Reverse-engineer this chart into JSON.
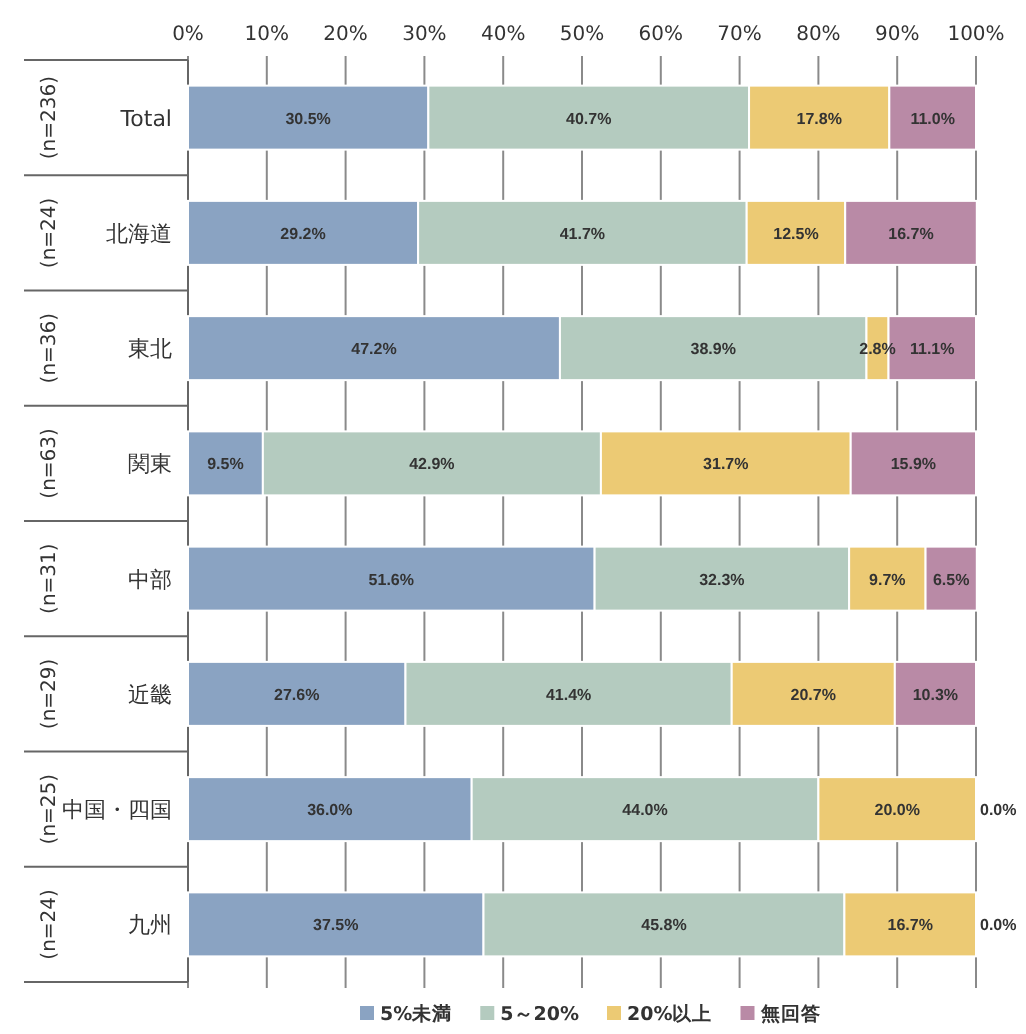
{
  "chart_data": {
    "type": "bar",
    "orientation": "horizontal",
    "stacked": true,
    "grid": "x",
    "legend": "bottom",
    "categories": [
      "Total",
      "北海道",
      "東北",
      "関東",
      "中部",
      "近畿",
      "中国・四国",
      "九州"
    ],
    "annotations": [
      "(n=236)",
      "(n=24)",
      "(n=36)",
      "(n=63)",
      "(n=31)",
      "(n=29)",
      "(n=25)",
      "(n=24)"
    ],
    "xlim": [
      0,
      100
    ],
    "xticks": [
      {
        "value": 0,
        "label": "0%"
      },
      {
        "value": 10,
        "label": "10%"
      },
      {
        "value": 20,
        "label": "20%"
      },
      {
        "value": 30,
        "label": "30%"
      },
      {
        "value": 40,
        "label": "40%"
      },
      {
        "value": 50,
        "label": "50%"
      },
      {
        "value": 60,
        "label": "60%"
      },
      {
        "value": 70,
        "label": "70%"
      },
      {
        "value": 80,
        "label": "80%"
      },
      {
        "value": 90,
        "label": "90%"
      },
      {
        "value": 100,
        "label": "100%"
      }
    ],
    "series": [
      {
        "name": "5%未満",
        "color": "#8aa3c2",
        "values": [
          30.5,
          29.2,
          47.2,
          9.5,
          51.6,
          27.6,
          36.0,
          37.5
        ],
        "value_labels": [
          "30.5%",
          "29.2%",
          "47.2%",
          "9.5%",
          "51.6%",
          "27.6%",
          "36.0%",
          "37.5%"
        ]
      },
      {
        "name": "5～20%",
        "color": "#b4cbbf",
        "values": [
          40.7,
          41.7,
          38.9,
          42.9,
          32.3,
          41.4,
          44.0,
          45.8
        ],
        "value_labels": [
          "40.7%",
          "41.7%",
          "38.9%",
          "42.9%",
          "32.3%",
          "41.4%",
          "44.0%",
          "45.8%"
        ]
      },
      {
        "name": "20%以上",
        "color": "#ecca74",
        "values": [
          17.8,
          12.5,
          2.8,
          31.7,
          9.7,
          20.7,
          20.0,
          16.7
        ],
        "value_labels": [
          "17.8%",
          "12.5%",
          "2.8%",
          "31.7%",
          "9.7%",
          "20.7%",
          "20.0%",
          "16.7%"
        ]
      },
      {
        "name": "無回答",
        "color": "#b98aa6",
        "values": [
          11.0,
          16.7,
          11.1,
          15.9,
          6.5,
          10.3,
          0.0,
          0.0
        ],
        "value_labels": [
          "11.0%",
          "16.7%",
          "11.1%",
          "15.9%",
          "6.5%",
          "10.3%",
          "0.0%",
          "0.0%"
        ]
      }
    ]
  }
}
